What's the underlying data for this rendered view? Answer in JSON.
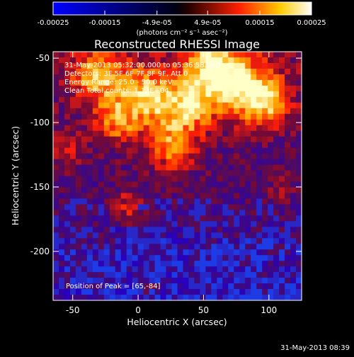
{
  "chart_data": {
    "type": "heatmap",
    "title": "Reconstructed RHESSI Image",
    "xlabel": "Heliocentric X (arcsec)",
    "ylabel": "Heliocentric Y (arcsec)",
    "xlim": [
      -65,
      125
    ],
    "ylim": [
      -238,
      -45
    ],
    "xticks": [
      -50,
      0,
      50,
      100
    ],
    "yticks": [
      -50,
      -100,
      -150,
      -200
    ],
    "colorbar": {
      "ticks": [
        -0.00025,
        -0.00015,
        -4.9e-05,
        4.9e-05,
        0.00015,
        0.00025
      ],
      "tick_labels": [
        "-0.00025",
        "-0.00015",
        "-4.9e-05",
        "4.9e-05",
        "0.00015",
        "0.00025"
      ],
      "label": "(photons cm⁻² s⁻¹ asec⁻²)",
      "range": [
        -0.00025,
        0.00025
      ],
      "colormap": [
        "#0000ff",
        "#000000",
        "#ff0000",
        "#ffff00",
        "#ffffff"
      ]
    },
    "annotations": [
      "31-May-2013 05:32:00.000 to 05:36:58.000",
      "Detectors: 3F 5F 6F 7F 8F 9F, Att 0",
      "Energy Range: 25.0 - 50.0 keV",
      "Clean    Total counts: 1.13E+04"
    ],
    "peak_label": "Position of Peak = [65,-84]",
    "footer_date": "31-May-2013 08:39"
  }
}
